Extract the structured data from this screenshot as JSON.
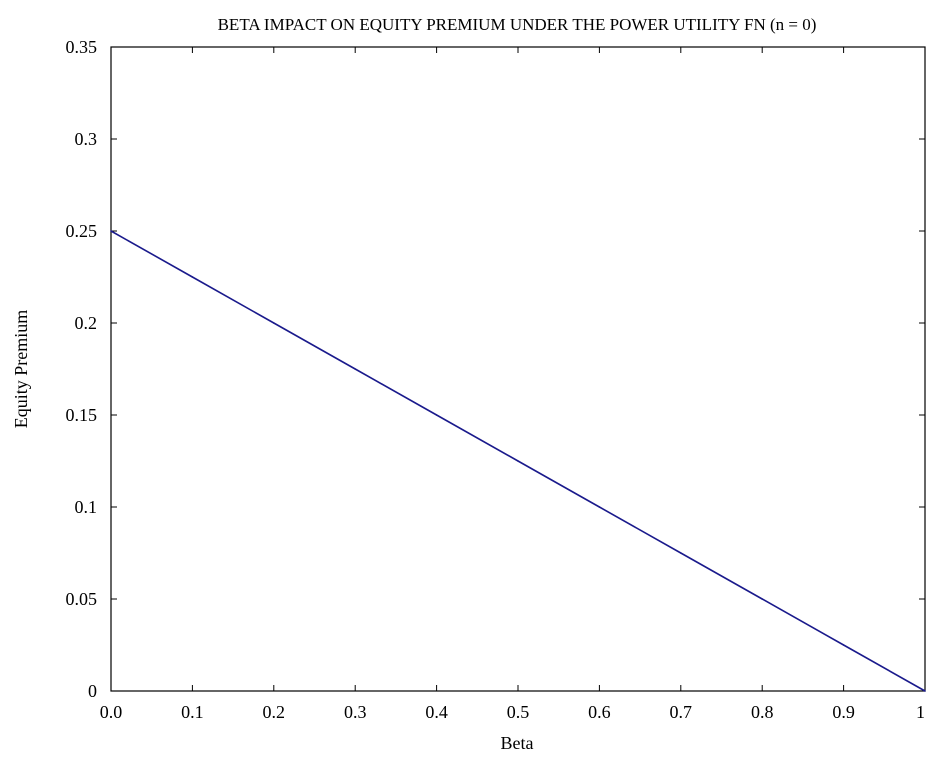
{
  "chart_data": {
    "type": "line",
    "title": "BETA IMPACT ON EQUITY PREMIUM UNDER THE POWER UTILITY FN (n = 0)",
    "xlabel": "Beta",
    "ylabel": "Equity Premium",
    "xlim": [
      0,
      1
    ],
    "ylim": [
      0,
      0.35
    ],
    "x_ticks": [
      "0.0",
      "0.1",
      "0.2",
      "0.3",
      "0.4",
      "0.5",
      "0.6",
      "0.7",
      "0.8",
      "0.9",
      "1"
    ],
    "y_ticks": [
      "0",
      "0.05",
      "0.1",
      "0.15",
      "0.2",
      "0.25",
      "0.3",
      "0.35"
    ],
    "grid": false,
    "legend": "none",
    "series": [
      {
        "color": "#1a1a8c",
        "x": [
          0.0,
          0.1,
          0.2,
          0.3,
          0.4,
          0.5,
          0.6,
          0.7,
          0.8,
          0.9,
          1.0
        ],
        "y": [
          0.25,
          0.225,
          0.2,
          0.175,
          0.15,
          0.125,
          0.1,
          0.075,
          0.05,
          0.025,
          0.0
        ]
      }
    ]
  }
}
